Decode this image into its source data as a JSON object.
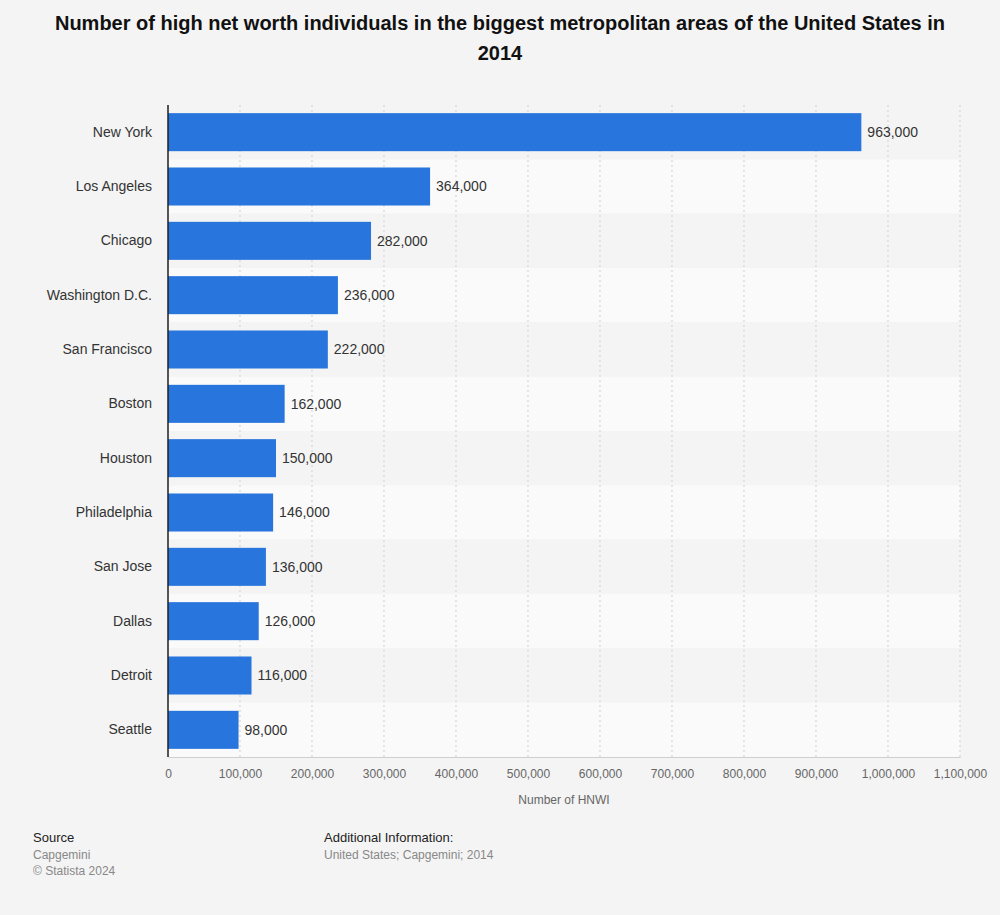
{
  "chart_data": {
    "type": "bar",
    "orientation": "horizontal",
    "title": "Number of high net worth individuals in the biggest metropolitan areas of the United States in 2014",
    "x_label": "Number of HNWI",
    "categories": [
      "New York",
      "Los Angeles",
      "Chicago",
      "Washington D.C.",
      "San Francisco",
      "Boston",
      "Houston",
      "Philadelphia",
      "San Jose",
      "Dallas",
      "Detroit",
      "Seattle"
    ],
    "values": [
      963000,
      364000,
      282000,
      236000,
      222000,
      162000,
      150000,
      146000,
      136000,
      126000,
      116000,
      98000
    ],
    "value_labels": [
      "963,000",
      "364,000",
      "282,000",
      "236,000",
      "222,000",
      "162,000",
      "150,000",
      "146,000",
      "136,000",
      "126,000",
      "116,000",
      "98,000"
    ],
    "color": "#2876dd",
    "xlim": [
      0,
      1100000
    ],
    "xticks": [
      0,
      {
        "value": 100000,
        "label": "100,000"
      },
      {
        "value": 200000,
        "label": "200,000"
      },
      {
        "value": 300000,
        "label": "300,000"
      },
      {
        "value": 400000,
        "label": "400,000"
      },
      {
        "value": 500000,
        "label": "500,000"
      },
      {
        "value": 600000,
        "label": "600,000"
      },
      {
        "value": 700000,
        "label": "700,000"
      },
      {
        "value": 800000,
        "label": "800,000"
      },
      {
        "value": 900000,
        "label": "900,000"
      },
      {
        "value": 1000000,
        "label": "1,000,000"
      },
      {
        "value": 1100000,
        "label": "1,100,000"
      }
    ],
    "grid": true,
    "data_labels": true,
    "source_title": "Source",
    "source": "Capgemini",
    "copyright": "© Statista 2024",
    "additional_info_title": "Additional Information:",
    "additional_info": "United States; Capgemini; 2014"
  }
}
